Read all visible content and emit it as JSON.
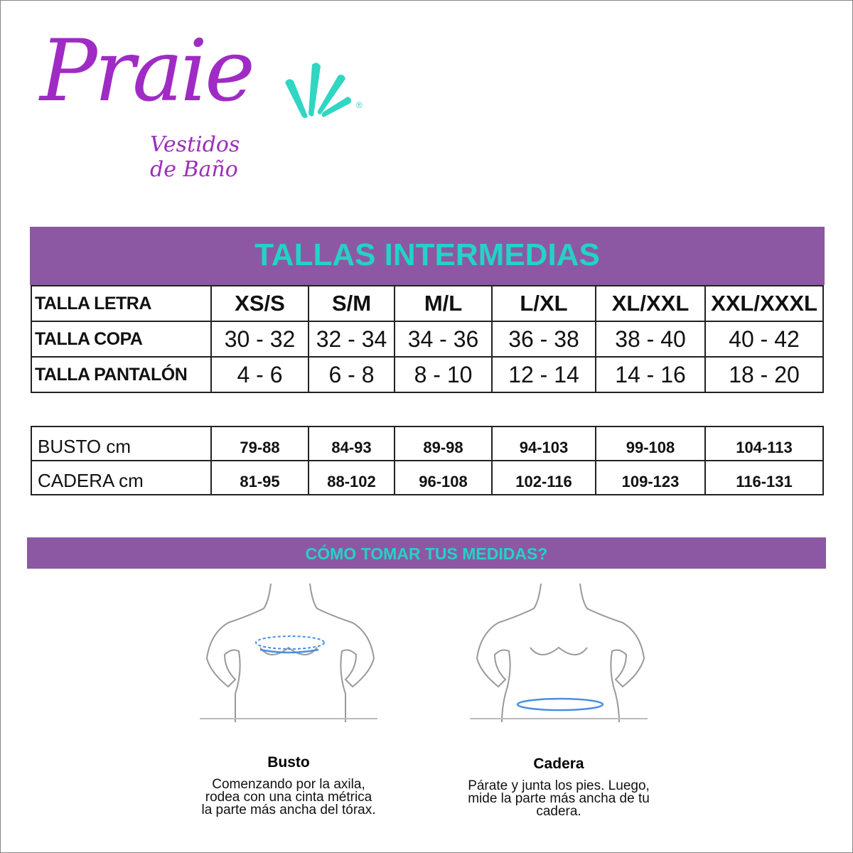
{
  "brand": {
    "name": "Praie",
    "registered": "®",
    "tagline": "Vestidos de Baño"
  },
  "title": "TALLAS INTERMEDIAS",
  "size_table": {
    "rows": [
      {
        "label": "TALLA LETRA",
        "values": [
          "XS/S",
          "S/M",
          "M/L",
          "L/XL",
          "XL/XXL",
          "XXL/XXXL"
        ]
      },
      {
        "label": "TALLA COPA",
        "values": [
          "30 - 32",
          "32 - 34",
          "34 - 36",
          "36 - 38",
          "38 - 40",
          "40 - 42"
        ]
      },
      {
        "label": "TALLA PANTALÓN",
        "values": [
          "4 - 6",
          "6 - 8",
          "8 - 10",
          "12 - 14",
          "14 - 16",
          "18 - 20"
        ]
      }
    ]
  },
  "measure_table": {
    "rows": [
      {
        "label": "BUSTO cm",
        "values": [
          "79-88",
          "84-93",
          "89-98",
          "94-103",
          "99-108",
          "104-113"
        ]
      },
      {
        "label": "CADERA cm",
        "values": [
          "81-95",
          "88-102",
          "96-108",
          "102-116",
          "109-123",
          "116-131"
        ]
      }
    ]
  },
  "how_to": {
    "title": "CÓMO TOMAR TUS MEDIDAS?",
    "items": [
      {
        "title": "Busto",
        "lines": [
          "Comenzando por la axila,",
          "rodea con una cinta métrica",
          "la parte más ancha del tórax."
        ]
      },
      {
        "title": "Cadera",
        "lines": [
          "Párate y junta los pies. Luego,",
          "mide la parte más ancha de tu",
          "cadera."
        ]
      }
    ]
  },
  "colors": {
    "purple": "#8c58a3",
    "cyan": "#22d3c6",
    "tape": "#4a8fe0"
  }
}
